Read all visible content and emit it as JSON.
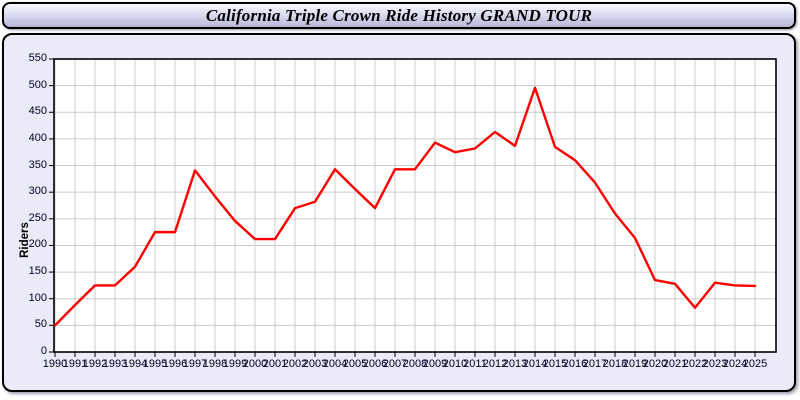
{
  "header": {
    "title": "California Triple Crown Ride History GRAND TOUR"
  },
  "chart_data": {
    "type": "line",
    "title": "California Triple Crown Ride History GRAND TOUR",
    "xlabel": "",
    "ylabel": "Riders",
    "ylim": [
      0,
      550
    ],
    "ytick_step": 50,
    "ytick_labels": [
      "0",
      "50",
      "100",
      "150",
      "200",
      "250",
      "300",
      "350",
      "400",
      "450",
      "500",
      "550"
    ],
    "grid": true,
    "legend_position": "none",
    "x": [
      1990,
      1991,
      1992,
      1993,
      1994,
      1995,
      1996,
      1997,
      1998,
      1999,
      2000,
      2001,
      2002,
      2003,
      2004,
      2005,
      2006,
      2007,
      2008,
      2009,
      2010,
      2011,
      2012,
      2013,
      2014,
      2015,
      2016,
      2017,
      2018,
      2019,
      2020,
      2021,
      2022,
      2023,
      2024,
      2025
    ],
    "series": [
      {
        "name": "Riders",
        "values": [
          50,
          88,
          125,
          125,
          160,
          225,
          225,
          341,
          292,
          246,
          212,
          212,
          270,
          282,
          343,
          306,
          270,
          343,
          343,
          393,
          375,
          382,
          413,
          387,
          496,
          385,
          360,
          318,
          260,
          214,
          135,
          128,
          83,
          130,
          125,
          124
        ]
      }
    ]
  },
  "colors": {
    "line": "#ff0000",
    "grid": "#cccccc",
    "plot_background": "#ffffff",
    "panel_background": "#eaeaf8",
    "axis": "#000000",
    "tick_text": "#000025",
    "header_gradient_top": "#ffffff",
    "header_gradient_mid": "#d8d8ef",
    "header_gradient_bottom": "#b4b4d2"
  }
}
